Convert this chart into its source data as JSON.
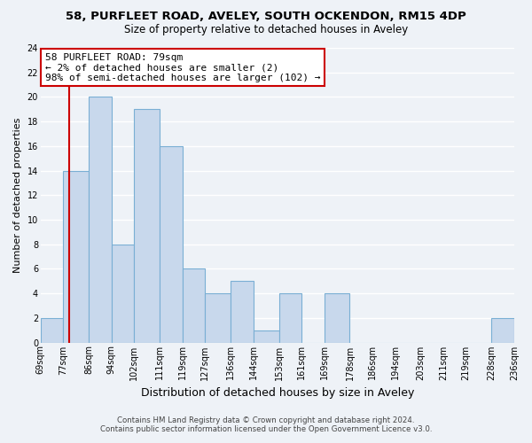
{
  "title": "58, PURFLEET ROAD, AVELEY, SOUTH OCKENDON, RM15 4DP",
  "subtitle": "Size of property relative to detached houses in Aveley",
  "xlabel": "Distribution of detached houses by size in Aveley",
  "ylabel": "Number of detached properties",
  "bin_edges": [
    69,
    77,
    86,
    94,
    102,
    111,
    119,
    127,
    136,
    144,
    153,
    161,
    169,
    178,
    186,
    194,
    203,
    211,
    219,
    228,
    236
  ],
  "bin_labels": [
    "69sqm",
    "77sqm",
    "86sqm",
    "94sqm",
    "102sqm",
    "111sqm",
    "119sqm",
    "127sqm",
    "136sqm",
    "144sqm",
    "153sqm",
    "161sqm",
    "169sqm",
    "178sqm",
    "186sqm",
    "194sqm",
    "203sqm",
    "211sqm",
    "219sqm",
    "228sqm",
    "236sqm"
  ],
  "counts": [
    2,
    14,
    20,
    8,
    19,
    16,
    6,
    4,
    5,
    1,
    4,
    0,
    4,
    0,
    0,
    0,
    0,
    0,
    0,
    2
  ],
  "bar_color": "#c8d8ec",
  "bar_edge_color": "#7aafd4",
  "property_line_x": 79,
  "property_line_color": "#cc0000",
  "annotation_text": "58 PURFLEET ROAD: 79sqm\n← 2% of detached houses are smaller (2)\n98% of semi-detached houses are larger (102) →",
  "annotation_box_color": "#ffffff",
  "annotation_box_edge": "#cc0000",
  "ylim": [
    0,
    24
  ],
  "yticks": [
    0,
    2,
    4,
    6,
    8,
    10,
    12,
    14,
    16,
    18,
    20,
    22,
    24
  ],
  "footer_line1": "Contains HM Land Registry data © Crown copyright and database right 2024.",
  "footer_line2": "Contains public sector information licensed under the Open Government Licence v3.0.",
  "background_color": "#eef2f7",
  "grid_color": "#ffffff",
  "title_fontsize": 9.5,
  "subtitle_fontsize": 8.5,
  "ylabel_fontsize": 8,
  "xlabel_fontsize": 9,
  "tick_fontsize": 7,
  "annotation_fontsize": 8
}
